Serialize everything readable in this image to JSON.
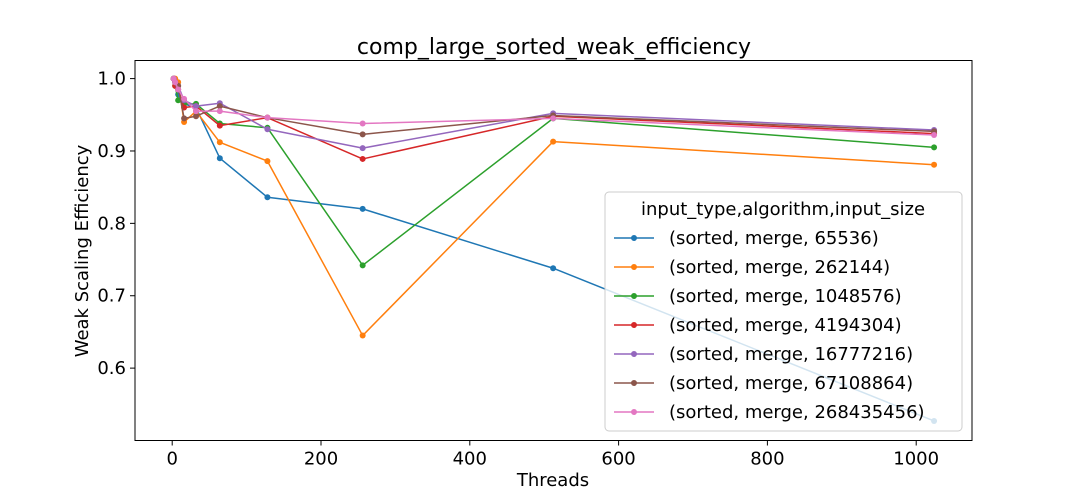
{
  "chart_data": {
    "type": "line",
    "title": "comp_large_sorted_weak_efficiency",
    "xlabel": "Threads",
    "ylabel": "Weak Scaling Efficiency",
    "xlim": [
      -50,
      1075
    ],
    "ylim": [
      0.5,
      1.025
    ],
    "xticks": [
      0,
      200,
      400,
      600,
      800,
      1000
    ],
    "yticks": [
      0.6,
      0.7,
      0.8,
      0.9,
      1.0
    ],
    "xtick_labels": [
      "0",
      "200",
      "400",
      "600",
      "800",
      "1000"
    ],
    "ytick_labels": [
      "0.6",
      "0.7",
      "0.8",
      "0.9",
      "1.0"
    ],
    "grid": false,
    "legend_placement": "lower-right",
    "legend_title": "input_type,algorithm,input_size",
    "x": [
      2,
      4,
      8,
      16,
      32,
      64,
      128,
      256,
      512,
      1024
    ],
    "series": [
      {
        "name": "(sorted, merge, 65536)",
        "color": "#1f77b4",
        "values": [
          1.0,
          0.995,
          0.978,
          0.965,
          0.96,
          0.89,
          0.836,
          0.82,
          0.738,
          0.527
        ]
      },
      {
        "name": "(sorted, merge, 262144)",
        "color": "#ff7f0e",
        "values": [
          1.0,
          1.0,
          0.995,
          0.94,
          0.955,
          0.912,
          0.886,
          0.645,
          0.913,
          0.881
        ]
      },
      {
        "name": "(sorted, merge, 1048576)",
        "color": "#2ca02c",
        "values": [
          1.0,
          0.99,
          0.97,
          0.965,
          0.965,
          0.938,
          0.932,
          0.742,
          0.945,
          0.905
        ]
      },
      {
        "name": "(sorted, merge, 4194304)",
        "color": "#d62728",
        "values": [
          1.0,
          0.99,
          0.985,
          0.96,
          0.962,
          0.935,
          0.946,
          0.889,
          0.948,
          0.924
        ]
      },
      {
        "name": "(sorted, merge, 16777216)",
        "color": "#9467bd",
        "values": [
          1.0,
          0.995,
          0.99,
          0.97,
          0.962,
          0.966,
          0.93,
          0.904,
          0.952,
          0.929
        ]
      },
      {
        "name": "(sorted, merge, 67108864)",
        "color": "#8c564b",
        "values": [
          1.0,
          0.995,
          0.99,
          0.945,
          0.948,
          0.962,
          0.946,
          0.923,
          0.949,
          0.927
        ]
      },
      {
        "name": "(sorted, merge, 268435456)",
        "color": "#e377c2",
        "values": [
          1.0,
          0.995,
          0.985,
          0.972,
          0.955,
          0.955,
          0.946,
          0.938,
          0.945,
          0.922
        ]
      }
    ]
  }
}
